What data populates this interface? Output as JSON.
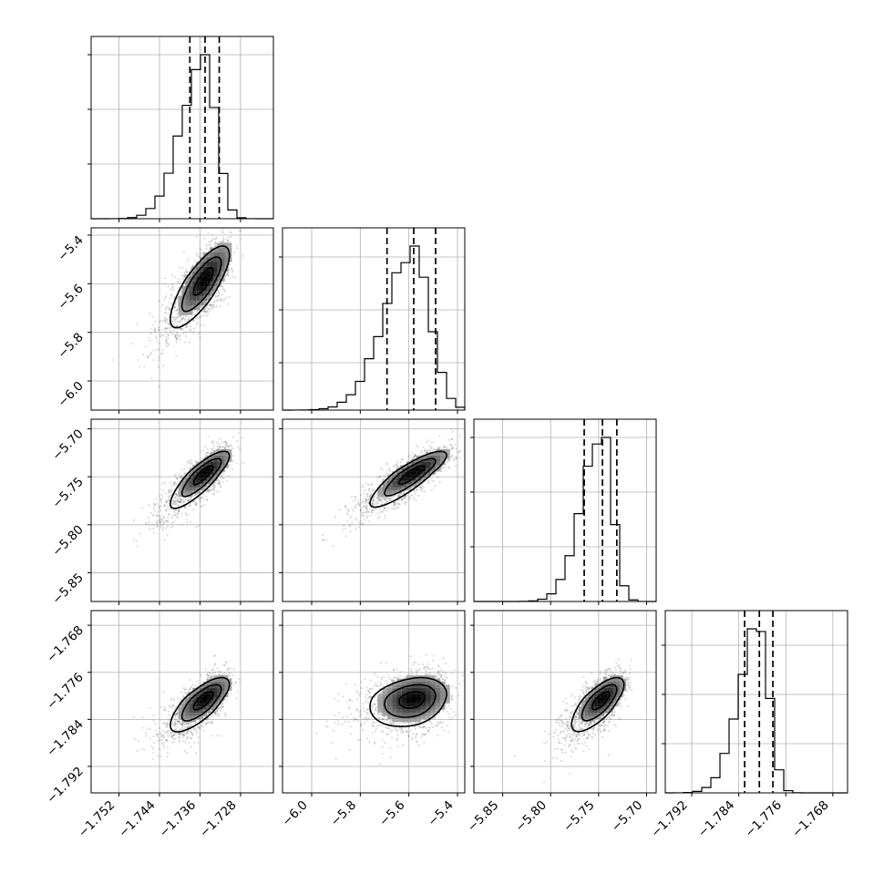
{
  "chart_data": {
    "type": "corner",
    "parameters": [
      {
        "index": 0,
        "range": [
          -1.7575,
          -1.7215
        ],
        "median": -1.735,
        "quantiles": [
          -1.738,
          -1.735,
          -1.7322
        ],
        "ticks": [
          -1.752,
          -1.744,
          -1.736,
          -1.728
        ],
        "tick_labels": [
          "−1.752",
          "−1.744",
          "−1.736",
          "−1.728"
        ],
        "sigma": 0.0032,
        "skew": 0.7,
        "hist_ticks": [
          0.3,
          0.6,
          0.9
        ]
      },
      {
        "index": 1,
        "range": [
          -6.12,
          -5.37
        ],
        "median": -5.58,
        "quantiles": [
          -5.69,
          -5.58,
          -5.49
        ],
        "ticks": [
          -6.0,
          -5.8,
          -5.6,
          -5.4
        ],
        "tick_labels": [
          "−6.0",
          "−5.8",
          "−5.6",
          "−5.4"
        ],
        "sigma": 0.09,
        "skew": 0.75,
        "hist_ticks": [
          0.26,
          0.55,
          0.84
        ]
      },
      {
        "index": 2,
        "range": [
          -5.88,
          -5.69
        ],
        "median": -5.746,
        "quantiles": [
          -5.765,
          -5.746,
          -5.731
        ],
        "ticks": [
          -5.85,
          -5.8,
          -5.75,
          -5.7
        ],
        "tick_labels": [
          "−5.85",
          "−5.80",
          "−5.75",
          "−5.70"
        ],
        "sigma": 0.015,
        "skew": 0.7,
        "hist_ticks": [
          0.3,
          0.6,
          0.9
        ]
      },
      {
        "index": 3,
        "range": [
          -1.7965,
          -1.7655
        ],
        "median": -1.7805,
        "quantiles": [
          -1.783,
          -1.7805,
          -1.7782
        ],
        "ticks": [
          -1.792,
          -1.784,
          -1.776,
          -1.768
        ],
        "tick_labels": [
          "−1.792",
          "−1.784",
          "−1.776",
          "−1.768"
        ],
        "sigma": 0.0024,
        "skew": 0.7,
        "hist_ticks": [
          0.27,
          0.54,
          0.81
        ]
      }
    ],
    "correlations": {
      "1-0": 0.72,
      "2-0": 0.78,
      "2-1": 0.82,
      "3-0": 0.68,
      "3-1": 0.22,
      "3-2": 0.66
    },
    "histogram_bins": 20,
    "contour_levels_sigma": [
      0.5,
      1.0,
      1.5
    ],
    "grid": true,
    "quantile_lines": "dashed",
    "colors": {
      "line": "#000000",
      "grid": "#b0b0b0",
      "points": "#444444"
    }
  }
}
